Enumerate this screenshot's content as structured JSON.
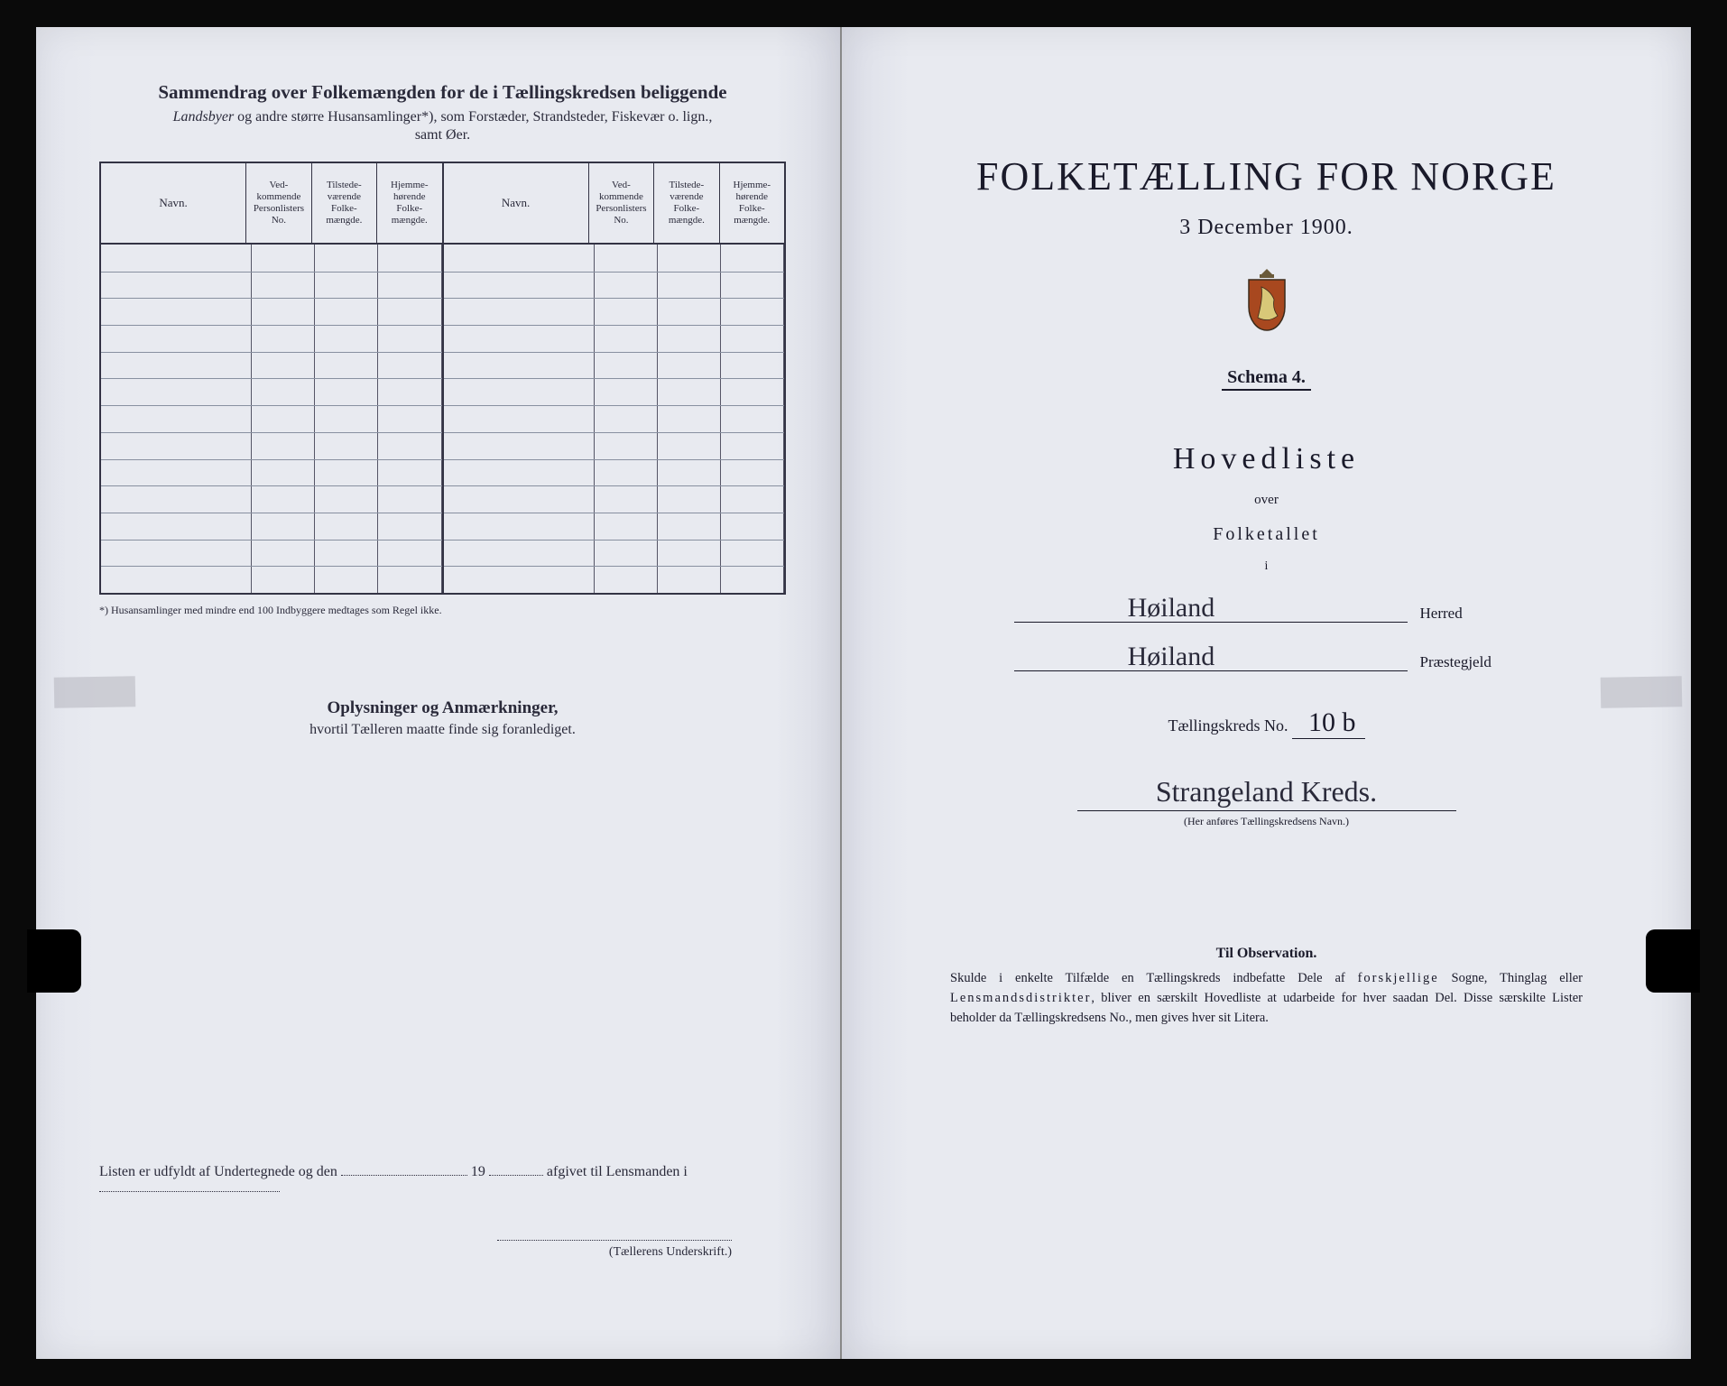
{
  "left": {
    "title": "Sammendrag over Folkemængden for de i Tællingskredsen beliggende",
    "subtitle_prefix_italic": "Landsbyer",
    "subtitle_rest": " og andre større Husansamlinger*), som Forstæder, Strandsteder, Fiskevær o. lign.,",
    "subtitle_line2": "samt Øer.",
    "headers": {
      "navn": "Navn.",
      "col1": "Ved-\nkommende\nPersonlisters\nNo.",
      "col2": "Tilstede-\nværende\nFolke-\nmængde.",
      "col3": "Hjemme-\nhørende\nFolke-\nmængde."
    },
    "footnote": "*) Husansamlinger med mindre end 100 Indbyggere medtages som Regel ikke.",
    "section_title": "Oplysninger og Anmærkninger,",
    "section_sub": "hvortil Tælleren maatte finde sig foranlediget.",
    "signline_a": "Listen er udfyldt af Undertegnede og den",
    "signline_b": "19",
    "signline_c": "afgivet til Lensmanden i",
    "underscript": "(Tællerens Underskrift.)",
    "row_count": 13
  },
  "right": {
    "title": "FOLKETÆLLING FOR NORGE",
    "date": "3 December 1900.",
    "schema": "Schema 4.",
    "hoved": "Hovedliste",
    "over": "over",
    "folketallet": "Folketallet",
    "i": "i",
    "herred_value": "Høiland",
    "herred_label": "Herred",
    "praestegjeld_value": "Høiland",
    "praestegjeld_label": "Præstegjeld",
    "tkreds_label": "Tællingskreds No.",
    "tkreds_no": "10 b",
    "kreds_name": "Strangeland Kreds.",
    "kreds_caption": "(Her anføres Tællingskredsens Navn.)",
    "obs_title": "Til Observation.",
    "obs_body_1": "Skulde i enkelte Tilfælde en Tællingskreds indbefatte Dele af ",
    "obs_body_spaced": "forskjellige",
    "obs_body_2": " Sogne, Thinglag eller ",
    "obs_body_spaced2": "Lensmandsdistrikter",
    "obs_body_3": ", bliver en særskilt Hovedliste at udarbeide for hver saadan Del. Disse særskilte Lister beholder da Tællingskredsens No., men gives hver sit Litera."
  },
  "colors": {
    "paper": "#e8eaf0",
    "ink": "#1a1a2a",
    "border": "#333344"
  }
}
